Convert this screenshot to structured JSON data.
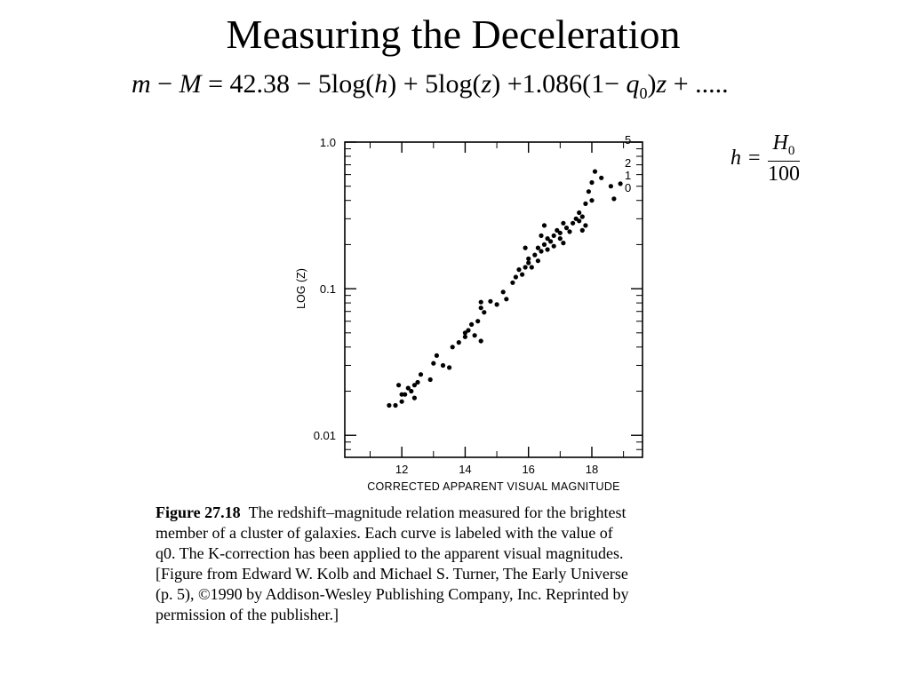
{
  "slide": {
    "title": "Measuring the Deceleration"
  },
  "equation": {
    "lhs_m": "m",
    "minus": "−",
    "lhs_M": "M",
    "equals": "=",
    "const": "42.38",
    "term1": "− 5log(",
    "h": "h",
    "close1": ")",
    "term2": "+ 5log(",
    "z": "z",
    "close2": ")",
    "term3": "+1.086(1−",
    "q": "q",
    "q_sub": "0",
    "close3": ")",
    "z2": "z",
    "tail": "+ ....."
  },
  "h_definition": {
    "h": "h",
    "equals": "=",
    "numerator": "H",
    "numerator_sub": "0",
    "denominator": "100"
  },
  "chart_data": {
    "type": "scatter",
    "title": "",
    "xlabel": "CORRECTED APPARENT VISUAL MAGNITUDE",
    "ylabel": "LOG (Z)",
    "xlim": [
      10.2,
      19.6
    ],
    "ylim_log10": [
      -2.15,
      0
    ],
    "y_scale": "log",
    "x_ticks": [
      12,
      14,
      16,
      18
    ],
    "x_tick_labels": [
      "12",
      "14",
      "16",
      "18"
    ],
    "y_ticks": [
      0.01,
      0.1,
      1.0
    ],
    "y_tick_labels": [
      "0.01",
      "0.1",
      "1.0"
    ],
    "grid": false,
    "points": [
      [
        11.8,
        0.016
      ],
      [
        11.9,
        0.022
      ],
      [
        12.0,
        0.017
      ],
      [
        12.1,
        0.019
      ],
      [
        12.2,
        0.021
      ],
      [
        12.3,
        0.02
      ],
      [
        12.4,
        0.018
      ],
      [
        12.5,
        0.023
      ],
      [
        12.6,
        0.026
      ],
      [
        11.6,
        0.016
      ],
      [
        12.0,
        0.019
      ],
      [
        12.4,
        0.022
      ],
      [
        12.9,
        0.024
      ],
      [
        13.0,
        0.031
      ],
      [
        13.1,
        0.035
      ],
      [
        13.3,
        0.03
      ],
      [
        13.6,
        0.04
      ],
      [
        13.8,
        0.043
      ],
      [
        14.0,
        0.047
      ],
      [
        14.0,
        0.05
      ],
      [
        13.5,
        0.029
      ],
      [
        14.1,
        0.052
      ],
      [
        14.2,
        0.057
      ],
      [
        14.3,
        0.048
      ],
      [
        14.4,
        0.06
      ],
      [
        14.5,
        0.081
      ],
      [
        14.5,
        0.074
      ],
      [
        14.6,
        0.069
      ],
      [
        14.8,
        0.082
      ],
      [
        15.0,
        0.078
      ],
      [
        15.2,
        0.095
      ],
      [
        15.3,
        0.085
      ],
      [
        14.5,
        0.044
      ],
      [
        15.5,
        0.11
      ],
      [
        15.6,
        0.12
      ],
      [
        15.7,
        0.135
      ],
      [
        15.8,
        0.125
      ],
      [
        15.9,
        0.14
      ],
      [
        16.0,
        0.15
      ],
      [
        16.0,
        0.16
      ],
      [
        16.1,
        0.14
      ],
      [
        16.2,
        0.17
      ],
      [
        16.3,
        0.19
      ],
      [
        16.3,
        0.155
      ],
      [
        16.4,
        0.18
      ],
      [
        16.5,
        0.2
      ],
      [
        16.6,
        0.22
      ],
      [
        16.6,
        0.185
      ],
      [
        16.7,
        0.21
      ],
      [
        16.8,
        0.23
      ],
      [
        16.8,
        0.195
      ],
      [
        16.9,
        0.25
      ],
      [
        17.0,
        0.22
      ],
      [
        17.0,
        0.24
      ],
      [
        17.1,
        0.205
      ],
      [
        17.2,
        0.26
      ],
      [
        17.3,
        0.245
      ],
      [
        16.4,
        0.23
      ],
      [
        16.5,
        0.27
      ],
      [
        17.1,
        0.28
      ],
      [
        15.9,
        0.19
      ],
      [
        17.4,
        0.28
      ],
      [
        17.5,
        0.3
      ],
      [
        17.6,
        0.29
      ],
      [
        17.6,
        0.33
      ],
      [
        17.7,
        0.31
      ],
      [
        17.8,
        0.38
      ],
      [
        17.9,
        0.46
      ],
      [
        18.0,
        0.4
      ],
      [
        18.1,
        0.63
      ],
      [
        18.0,
        0.53
      ],
      [
        17.8,
        0.27
      ],
      [
        18.3,
        0.57
      ],
      [
        18.6,
        0.5
      ],
      [
        18.9,
        0.52
      ],
      [
        18.7,
        0.41
      ],
      [
        17.7,
        0.25
      ]
    ],
    "curves": [
      {
        "label": "5",
        "q0": 5
      },
      {
        "label": "2",
        "q0": 2
      },
      {
        "label": "1",
        "q0": 1
      },
      {
        "label": "0",
        "q0": 0
      }
    ]
  },
  "caption": {
    "figure_label": "Figure 27.18",
    "lines": [
      "The redshift–magnitude relation measured for the brightest",
      "member of a cluster of galaxies.  Each curve is labeled with the value of",
      "q0.  The K-correction has been applied to the apparent visual magnitudes.",
      "[Figure from Edward W. Kolb and Michael S. Turner, The Early Universe",
      "(p. 5), ©1990 by Addison-Wesley Publishing Company, Inc. Reprinted by",
      "permission of the publisher.]"
    ]
  }
}
